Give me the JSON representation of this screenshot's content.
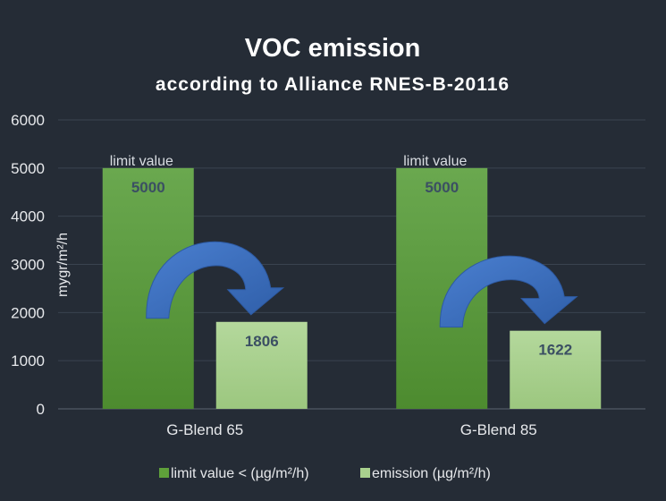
{
  "chart_data": {
    "type": "bar",
    "title": "VOC emission",
    "subtitle": "according to Alliance RNES-B-20116",
    "ylabel": "mygr/m²/h",
    "xlabel": "",
    "ylim": [
      0,
      6000
    ],
    "yticks": [
      0,
      1000,
      2000,
      3000,
      4000,
      5000,
      6000
    ],
    "grid": true,
    "legend_position": "bottom",
    "categories": [
      "G-Blend 65",
      "G-Blend 85"
    ],
    "series": [
      {
        "name": "limit value < (µg/m²/h)",
        "values": [
          5000,
          5000
        ],
        "color": "#5fa03a",
        "labels": [
          "5000",
          "5000"
        ]
      },
      {
        "name": "emission (µg/m²/h)",
        "values": [
          1806,
          1622
        ],
        "color": "#a9d18e",
        "labels": [
          "1806",
          "1622"
        ]
      }
    ],
    "annotations": [
      {
        "text": "limit value",
        "category": 0,
        "series": 0
      },
      {
        "text": "limit value",
        "category": 1,
        "series": 0
      }
    ],
    "arrow_color": "#3f6fc1"
  }
}
